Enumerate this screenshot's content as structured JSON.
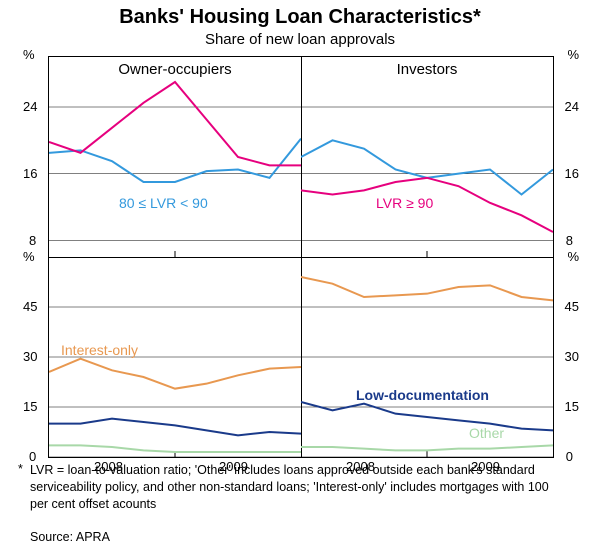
{
  "title": "Banks' Housing Loan Characteristics*",
  "subtitle": "Share of new loan approvals",
  "footnote": "LVR = loan-to-valuation ratio; 'Other' includes loans approved outside each bank's standard serviceability policy, and other non-standard loans; 'Interest-only' includes mortgages with 100 per cent offset acounts",
  "source": "Source: APRA",
  "unit": "%",
  "colors": {
    "lvr80": "#3399dd",
    "lvr90": "#e6007e",
    "interest_only": "#e89850",
    "low_doc": "#1a3a8a",
    "other": "#a8d8a8",
    "grid": "#000000",
    "bg": "#ffffff"
  },
  "line_width": 2,
  "panels": {
    "top_left": {
      "title": "Owner-occupiers",
      "ylim": [
        6,
        30
      ],
      "yticks": [
        8,
        16,
        24
      ],
      "x_range": [
        0,
        8
      ],
      "series": {
        "lvr80": {
          "label": "80 ≤ LVR < 90",
          "label_color": "#3399dd",
          "data": [
            18.5,
            18.8,
            17.5,
            15.0,
            15.0,
            16.3,
            16.5,
            15.5,
            20.2
          ]
        },
        "lvr90": {
          "label": "LVR ≥ 90",
          "label_color": "#e6007e",
          "data": [
            19.8,
            18.5,
            21.5,
            24.5,
            27.0,
            22.5,
            18.0,
            17.0,
            17.0
          ]
        }
      }
    },
    "top_right": {
      "title": "Investors",
      "ylim": [
        6,
        30
      ],
      "yticks": [
        8,
        16,
        24
      ],
      "x_range": [
        0,
        8
      ],
      "series": {
        "lvr80": {
          "data": [
            18.0,
            20.0,
            19.0,
            16.5,
            15.5,
            16.0,
            16.5,
            13.5,
            16.5
          ]
        },
        "lvr90": {
          "data": [
            14.0,
            13.5,
            14.0,
            15.0,
            15.5,
            14.5,
            12.5,
            11.0,
            9.0
          ]
        }
      }
    },
    "bottom_left": {
      "ylim": [
        0,
        60
      ],
      "yticks": [
        0,
        15,
        30,
        45
      ],
      "x_range": [
        0,
        8
      ],
      "series": {
        "interest_only": {
          "label": "Interest-only",
          "label_color": "#e89850",
          "data": [
            25.5,
            29.5,
            26.0,
            24.0,
            20.5,
            22.0,
            24.5,
            26.5,
            27.0
          ]
        },
        "low_doc": {
          "label_color": "#1a3a8a",
          "data": [
            10.0,
            10.0,
            11.5,
            10.5,
            9.5,
            8.0,
            6.5,
            7.5,
            7.0
          ]
        },
        "other": {
          "label_color": "#a8d8a8",
          "data": [
            3.5,
            3.5,
            3.0,
            2.0,
            1.5,
            1.5,
            1.5,
            1.5,
            1.5
          ]
        }
      }
    },
    "bottom_right": {
      "ylim": [
        0,
        60
      ],
      "yticks": [
        0,
        15,
        30,
        45
      ],
      "x_range": [
        0,
        8
      ],
      "series": {
        "interest_only": {
          "data": [
            54.0,
            52.0,
            48.0,
            48.5,
            49.0,
            51.0,
            51.5,
            48.0,
            47.0
          ]
        },
        "low_doc": {
          "label": "Low-documentation",
          "label_color": "#1a3a8a",
          "data": [
            16.5,
            14.0,
            16.0,
            13.0,
            12.0,
            11.0,
            10.0,
            8.5,
            8.0
          ]
        },
        "other": {
          "label": "Other",
          "label_color": "#a8d8a8",
          "data": [
            3.0,
            3.0,
            2.5,
            2.0,
            2.0,
            2.5,
            2.5,
            3.0,
            3.5
          ]
        }
      }
    }
  },
  "x_labels": [
    "2008",
    "2009"
  ]
}
